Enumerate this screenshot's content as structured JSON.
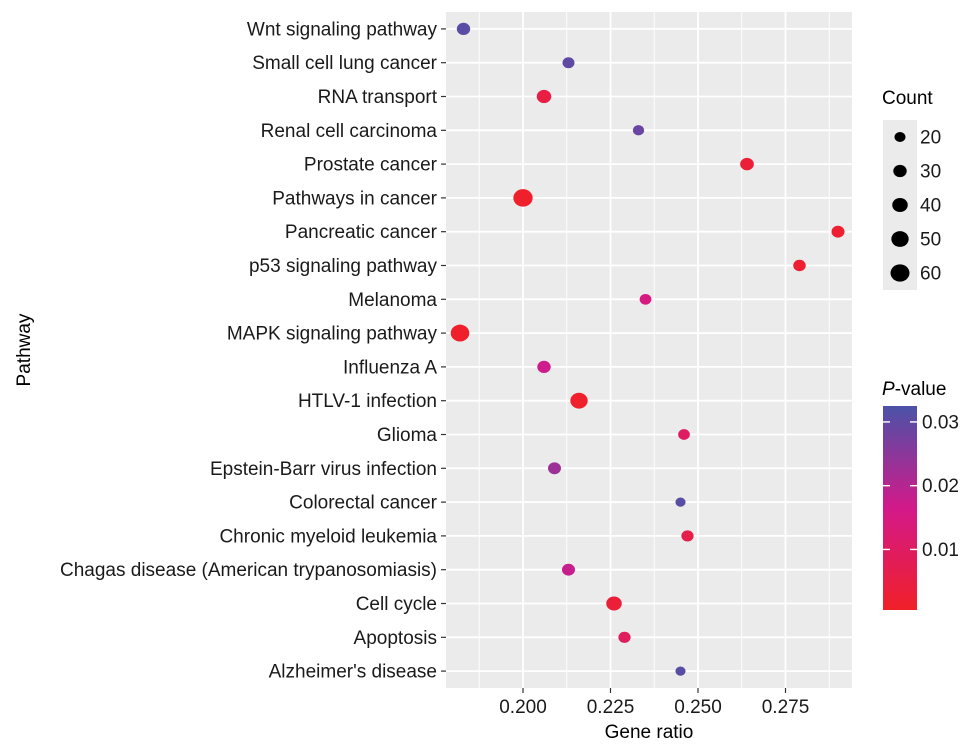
{
  "chart_data": {
    "type": "scatter",
    "xlabel": "Gene ratio",
    "ylabel": "Pathway",
    "xlim": [
      0.178,
      0.294
    ],
    "x_ticks": [
      "0.200",
      "0.225",
      "0.250",
      "0.275"
    ],
    "x_tick_values": [
      0.2,
      0.225,
      0.25,
      0.275
    ],
    "categories": [
      "Wnt signaling pathway",
      "Small cell lung cancer",
      "RNA transport",
      "Renal cell carcinoma",
      "Prostate cancer",
      "Pathways in cancer",
      "Pancreatic cancer",
      "p53 signaling pathway",
      "Melanoma",
      "MAPK signaling pathway",
      "Influenza A",
      "HTLV-1 infection",
      "Glioma",
      "Epstein-Barr virus infection",
      "Colorectal cancer",
      "Chronic myeloid leukemia",
      "Chagas disease (American trypanosomiasis)",
      "Cell cycle",
      "Apoptosis",
      "Alzheimer's disease"
    ],
    "points": [
      {
        "pathway": "Wnt signaling pathway",
        "gene_ratio": 0.183,
        "count": 30,
        "p_value": 0.031
      },
      {
        "pathway": "Small cell lung cancer",
        "gene_ratio": 0.213,
        "count": 24,
        "p_value": 0.03
      },
      {
        "pathway": "RNA transport",
        "gene_ratio": 0.206,
        "count": 35,
        "p_value": 0.005
      },
      {
        "pathway": "Renal cell carcinoma",
        "gene_ratio": 0.233,
        "count": 21,
        "p_value": 0.029
      },
      {
        "pathway": "Prostate cancer",
        "gene_ratio": 0.264,
        "count": 31,
        "p_value": 0.003
      },
      {
        "pathway": "Pathways in cancer",
        "gene_ratio": 0.2,
        "count": 62,
        "p_value": 0.001
      },
      {
        "pathway": "Pancreatic cancer",
        "gene_ratio": 0.29,
        "count": 28,
        "p_value": 0.002
      },
      {
        "pathway": "p53 signaling pathway",
        "gene_ratio": 0.279,
        "count": 26,
        "p_value": 0.002
      },
      {
        "pathway": "Melanoma",
        "gene_ratio": 0.235,
        "count": 23,
        "p_value": 0.015
      },
      {
        "pathway": "MAPK signaling pathway",
        "gene_ratio": 0.182,
        "count": 57,
        "p_value": 0.001
      },
      {
        "pathway": "Influenza A",
        "gene_ratio": 0.206,
        "count": 30,
        "p_value": 0.017
      },
      {
        "pathway": "HTLV-1 infection",
        "gene_ratio": 0.216,
        "count": 50,
        "p_value": 0.001
      },
      {
        "pathway": "Glioma",
        "gene_ratio": 0.246,
        "count": 23,
        "p_value": 0.01
      },
      {
        "pathway": "Epstein-Barr virus infection",
        "gene_ratio": 0.209,
        "count": 28,
        "p_value": 0.023
      },
      {
        "pathway": "Colorectal cancer",
        "gene_ratio": 0.245,
        "count": 17,
        "p_value": 0.031
      },
      {
        "pathway": "Chronic myeloid leukemia",
        "gene_ratio": 0.247,
        "count": 25,
        "p_value": 0.006
      },
      {
        "pathway": "Chagas disease (American trypanosomiasis)",
        "gene_ratio": 0.213,
        "count": 28,
        "p_value": 0.018
      },
      {
        "pathway": "Cell cycle",
        "gene_ratio": 0.226,
        "count": 40,
        "p_value": 0.003
      },
      {
        "pathway": "Apoptosis",
        "gene_ratio": 0.229,
        "count": 25,
        "p_value": 0.009
      },
      {
        "pathway": "Alzheimer's disease",
        "gene_ratio": 0.245,
        "count": 17,
        "p_value": 0.031
      }
    ],
    "size_legend": {
      "title": "Count",
      "values": [
        20,
        30,
        40,
        50,
        60
      ],
      "labels": [
        "20",
        "30",
        "40",
        "50",
        "60"
      ]
    },
    "color_legend": {
      "title_italic": "P",
      "title_rest": "-value",
      "tick_values": [
        0.03,
        0.02,
        0.01
      ],
      "tick_labels": [
        "0.03",
        "0.02",
        "0.01"
      ],
      "range": [
        0.0005,
        0.0325
      ],
      "low_color": "#f02028",
      "high_color": "#4a52a8"
    },
    "panel_background": "#ebebeb",
    "grid_color": "#ffffff",
    "grid": true
  }
}
